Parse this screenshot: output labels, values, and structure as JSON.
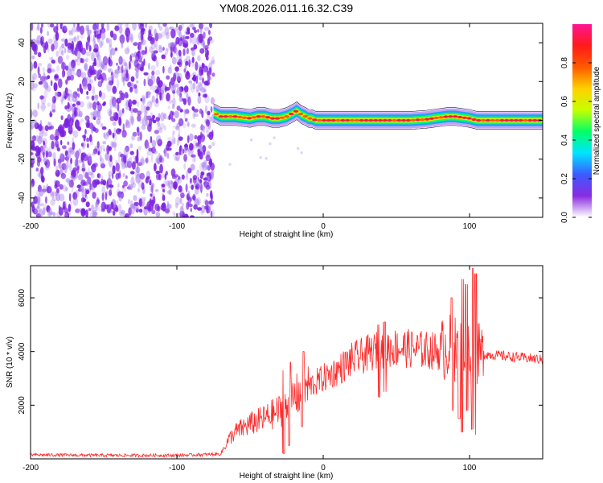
{
  "figure_title": "YM08.2026.011.16.32.C39",
  "chart_data": [
    {
      "type": "heatmap",
      "title": "YM08.2026.011.16.32.C39",
      "xlabel": "Height of straight line (km)",
      "ylabel": "Frequency (Hz)",
      "xlim": [
        -200,
        150
      ],
      "ylim": [
        -50,
        50
      ],
      "x_ticks": [
        -200,
        -100,
        0,
        100
      ],
      "y_ticks": [
        -40,
        -20,
        0,
        20,
        40
      ],
      "grid": false,
      "colorbar": {
        "label": "Normalized spectral amplitude",
        "range": [
          0.0,
          1.0
        ],
        "ticks": [
          0.0,
          0.2,
          0.4,
          0.6,
          0.8
        ],
        "colors": [
          "#ffffff",
          "#8a2be2",
          "#3b5bff",
          "#00e5ff",
          "#00ff66",
          "#c8ff00",
          "#ffd000",
          "#ff5a00",
          "#ff1a1a",
          "#ff1493"
        ]
      },
      "noise_region": {
        "x_range": [
          -200,
          -75
        ],
        "y_range": [
          -50,
          50
        ],
        "amplitude_range": [
          0.0,
          0.15
        ]
      },
      "signal_ridge": {
        "x": [
          -75,
          -70,
          -60,
          -50,
          -45,
          -40,
          -35,
          -30,
          -25,
          -20,
          -18,
          -15,
          -12,
          -10,
          -8,
          -5,
          0,
          10,
          20,
          30,
          40,
          50,
          60,
          70,
          80,
          85,
          90,
          95,
          100,
          105,
          110,
          120,
          130,
          140,
          150
        ],
        "frequency": [
          4,
          2,
          2,
          1,
          2,
          2,
          1,
          1,
          2,
          4,
          5,
          3,
          2,
          1,
          1,
          0,
          0,
          0,
          0,
          0,
          0,
          0,
          0,
          0.5,
          1.5,
          2,
          2,
          1.5,
          1,
          0,
          0,
          0,
          0,
          0,
          0
        ],
        "peak_amplitude": 1.0
      }
    },
    {
      "type": "line",
      "xlabel": "Height of straight line (km)",
      "ylabel": "SNR (10 * v/v)",
      "xlim": [
        -200,
        150
      ],
      "ylim": [
        0,
        7200
      ],
      "x_ticks": [
        -200,
        -100,
        0,
        100
      ],
      "y_ticks": [
        2000,
        4000,
        6000
      ],
      "grid": false,
      "color": "#ff2a2a",
      "envelope": {
        "x": [
          -200,
          -150,
          -100,
          -80,
          -70,
          -65,
          -60,
          -50,
          -40,
          -30,
          -25,
          -20,
          -10,
          0,
          10,
          20,
          30,
          40,
          50,
          60,
          70,
          80,
          85,
          90,
          95,
          100,
          105,
          110,
          120,
          130,
          140,
          150
        ],
        "y": [
          150,
          130,
          130,
          160,
          180,
          700,
          1000,
          1300,
          1500,
          1800,
          1900,
          2300,
          2700,
          3000,
          3300,
          3700,
          3900,
          4100,
          4150,
          4100,
          4050,
          4000,
          4200,
          4100,
          4000,
          4100,
          3900,
          3900,
          3850,
          3800,
          3750,
          3700
        ]
      },
      "spikes": [
        {
          "x": -27,
          "y_min": 200,
          "y_max": 3300
        },
        {
          "x": -23,
          "y_min": 500,
          "y_max": 3600
        },
        {
          "x": -14,
          "y_min": 1200,
          "y_max": 4000
        },
        {
          "x": 38,
          "y_min": 2300,
          "y_max": 5000
        },
        {
          "x": 42,
          "y_min": 2500,
          "y_max": 5100
        },
        {
          "x": 88,
          "y_min": 1800,
          "y_max": 6000
        },
        {
          "x": 93,
          "y_min": 1500,
          "y_max": 7000
        },
        {
          "x": 95,
          "y_min": 1000,
          "y_max": 6700
        },
        {
          "x": 98,
          "y_min": 1800,
          "y_max": 6500
        },
        {
          "x": 102,
          "y_min": 1100,
          "y_max": 7100
        },
        {
          "x": 104,
          "y_min": 900,
          "y_max": 6900
        }
      ]
    }
  ]
}
